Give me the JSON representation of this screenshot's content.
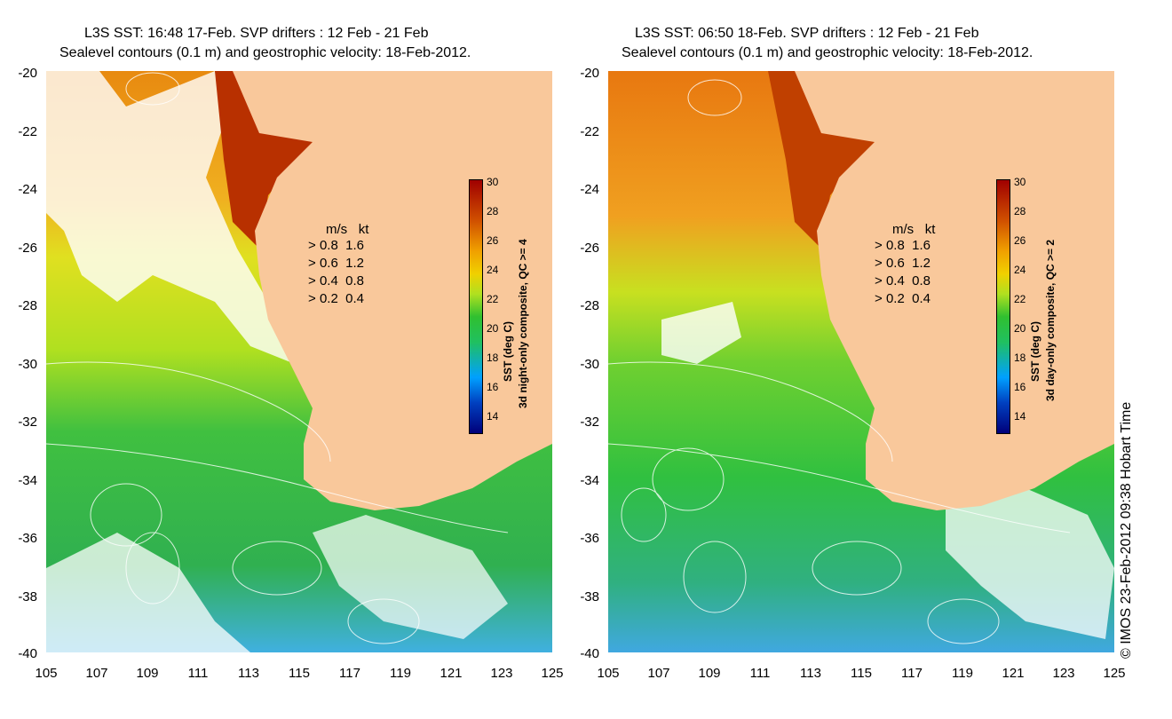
{
  "left": {
    "title_line1": "L3S SST: 16:48 17-Feb. SVP drifters : 12 Feb - 21 Feb",
    "title_line2": "Sealevel contours (0.1 m) and geostrophic velocity: 18-Feb-2012.",
    "colorbar_label": "SST (deg C)",
    "colorbar_sublabel": "3d night-only composite, QC >= 4"
  },
  "right": {
    "title_line1": "L3S SST: 06:50 18-Feb. SVP drifters : 12 Feb - 21 Feb",
    "title_line2": "Sealevel contours (0.1 m) and geostrophic velocity: 18-Feb-2012.",
    "colorbar_label": "SST (deg C)",
    "colorbar_sublabel": "3d day-only composite, QC >= 2"
  },
  "y_ticks": [
    "-20",
    "-22",
    "-24",
    "-26",
    "-28",
    "-30",
    "-32",
    "-34",
    "-36",
    "-38",
    "-40"
  ],
  "x_ticks": [
    "105",
    "107",
    "109",
    "111",
    "113",
    "115",
    "117",
    "119",
    "121",
    "123",
    "125"
  ],
  "colorbar_ticks": [
    "30",
    "28",
    "26",
    "24",
    "22",
    "20",
    "18",
    "16",
    "14"
  ],
  "legend": {
    "header_ms": "m/s",
    "header_kt": "kt",
    "rows": [
      {
        "ms": "0.8",
        "kt": "1.6"
      },
      {
        "ms": "0.6",
        "kt": "1.2"
      },
      {
        "ms": "0.4",
        "kt": "0.8"
      },
      {
        "ms": "0.2",
        "kt": "0.4"
      }
    ]
  },
  "copyright": "© IMOS 23-Feb-2012 09:38 Hobart Time",
  "colors": {
    "land": "#f9c89b",
    "warm": "#e88a10",
    "hot": "#a01000",
    "mid": "#c8e020",
    "cool": "#30c040",
    "cold": "#30a8e0"
  }
}
